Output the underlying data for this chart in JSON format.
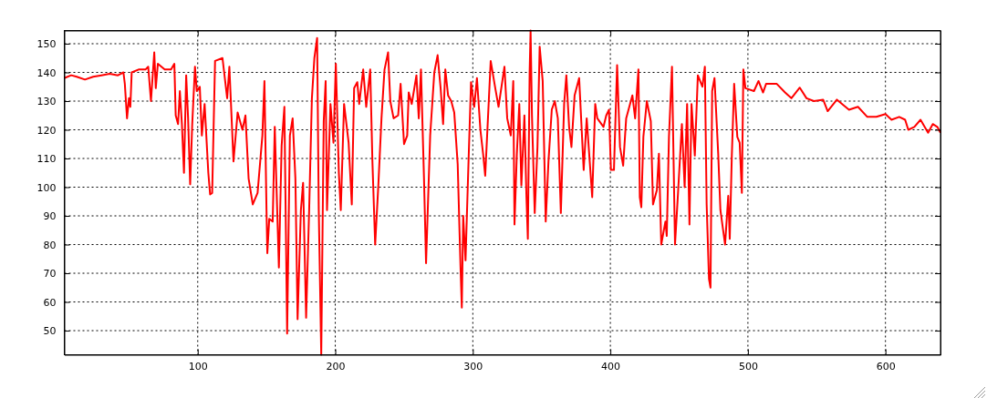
{
  "chart_data": {
    "type": "line",
    "color": "#ff0000",
    "x": [
      3,
      8,
      12,
      18,
      24,
      30,
      36,
      42,
      46,
      47,
      48.6,
      50,
      51,
      52,
      57,
      62,
      64,
      66,
      68.4,
      69.5,
      71,
      76,
      80.6,
      83,
      84,
      85.7,
      87,
      88.5,
      90,
      91.6,
      93,
      94.5,
      96,
      98,
      99.3,
      101.5,
      103,
      105,
      107.7,
      109,
      110.5,
      112.6,
      118,
      121.4,
      123,
      126,
      129,
      132.5,
      134.7,
      137,
      140,
      143.5,
      147,
      148.5,
      150,
      150.6,
      152,
      154.5,
      156,
      159,
      161,
      163,
      165,
      167,
      169,
      171,
      172.6,
      175,
      176.6,
      178.8,
      181,
      183,
      184.8,
      186.8,
      188,
      189.8,
      191.6,
      193,
      194,
      196.5,
      198.7,
      200.4,
      202.6,
      204,
      206.4,
      209.7,
      212,
      213.7,
      216,
      217.4,
      220.3,
      222.5,
      225.4,
      227,
      229,
      231.3,
      233.6,
      235.8,
      238.4,
      240,
      242.4,
      245.7,
      247.5,
      250,
      252.3,
      253.4,
      255.6,
      259,
      260.7,
      262.3,
      264.5,
      266,
      269,
      272,
      274.4,
      276.6,
      278.4,
      280,
      282,
      284.3,
      286.5,
      289,
      291,
      292,
      293,
      294.7,
      296.5,
      298.7,
      301,
      303,
      305.5,
      307.5,
      309,
      311,
      313,
      316.5,
      318.7,
      323,
      325,
      327.6,
      329.4,
      330.3,
      332,
      333.8,
      335.3,
      337.5,
      339,
      340,
      341.3,
      342,
      343,
      345,
      347,
      348.6,
      350.8,
      353,
      355,
      357.4,
      359.6,
      361.8,
      364,
      366.4,
      368,
      370,
      371.7,
      374,
      377.3,
      380.6,
      382.8,
      386.8,
      389,
      390.5,
      395,
      397,
      399,
      400.4,
      402.6,
      404.9,
      407,
      409.3,
      411.5,
      416,
      418,
      420.4,
      421.4,
      422.5,
      424,
      426.5,
      429.4,
      431,
      433.8,
      435.3,
      437,
      440,
      441,
      442.6,
      444.8,
      447,
      449.2,
      452,
      454,
      455.8,
      457.5,
      459,
      461.4,
      463.6,
      466.9,
      468.7,
      470,
      471.7,
      472.8,
      474,
      475.7,
      478.4,
      480,
      483.4,
      485.7,
      486.8,
      488.3,
      490,
      492.3,
      494,
      495.6,
      496.7,
      498.2,
      504.4,
      507.7,
      511,
      513.2,
      521,
      527,
      531.6,
      537.7,
      542.6,
      548,
      554.7,
      558,
      564.7,
      573.5,
      580,
      586.8,
      593.4,
      600,
      604.4,
      610,
      614.3,
      616.6,
      621,
      625.5,
      631,
      634.4,
      637.7,
      640
    ],
    "values": [
      138,
      139,
      138.5,
      137.5,
      138.5,
      139,
      139.5,
      139,
      140,
      136,
      124,
      131,
      128,
      140,
      141,
      141,
      142,
      130,
      147,
      134.5,
      143,
      141,
      141,
      143,
      125,
      122,
      133.5,
      122,
      105,
      139,
      124,
      101,
      122,
      142,
      133.5,
      135,
      118,
      129,
      105,
      97.5,
      98,
      144,
      145,
      131,
      142,
      109,
      126,
      120,
      125,
      103,
      94,
      98,
      118,
      137,
      92,
      77,
      89,
      88,
      121,
      72,
      114.5,
      128,
      49,
      118,
      124,
      103,
      54,
      92,
      101.5,
      54.5,
      92,
      131,
      145,
      152,
      92,
      41.6,
      123,
      137,
      92,
      129,
      115.5,
      143,
      105,
      92,
      129,
      115.5,
      94,
      134.5,
      136.6,
      129,
      141,
      128,
      141,
      109,
      80,
      100.6,
      124,
      141,
      147,
      130,
      124,
      125,
      136,
      115,
      118,
      133,
      129,
      139,
      124,
      141,
      103,
      73.5,
      118,
      140,
      146,
      134.5,
      122,
      141,
      132,
      130,
      126,
      108,
      73,
      58,
      90,
      74.5,
      103,
      136.6,
      128,
      138,
      120,
      111.5,
      104,
      124,
      144,
      134,
      128,
      142,
      124,
      118,
      137,
      87,
      111.5,
      129,
      100.6,
      125,
      96.5,
      82,
      140,
      154.6,
      125,
      91,
      114,
      149,
      137,
      88,
      109,
      127,
      130,
      124,
      91,
      129,
      139,
      121,
      114,
      132,
      138,
      106,
      124,
      96.5,
      129,
      124,
      121,
      125,
      127,
      106,
      106,
      142.5,
      114,
      107.5,
      124,
      132,
      124,
      141,
      96.5,
      93,
      117.5,
      130,
      123,
      94,
      99,
      111.7,
      80,
      88,
      83,
      117.5,
      142,
      80,
      98,
      122,
      100,
      129,
      87,
      129,
      111,
      139,
      135,
      142,
      94,
      68,
      65,
      133.5,
      138,
      111.7,
      92,
      80,
      97,
      82,
      111,
      136,
      117.5,
      115.5,
      98,
      141,
      134.5,
      133.5,
      137,
      133,
      136,
      136,
      133,
      131,
      134.7,
      131,
      130,
      130.5,
      126.5,
      130.5,
      127,
      128,
      124.5,
      124.5,
      125.5,
      123.5,
      124.5,
      123.5,
      120,
      121,
      123.5,
      119,
      122,
      121,
      119
    ],
    "xlim": [
      3,
      640
    ],
    "ylim": [
      41.6,
      154.6
    ],
    "xticks": [
      100,
      200,
      300,
      400,
      500,
      600
    ],
    "yticks": [
      50,
      60,
      70,
      80,
      90,
      100,
      110,
      120,
      130,
      140,
      150
    ],
    "grid": true
  }
}
